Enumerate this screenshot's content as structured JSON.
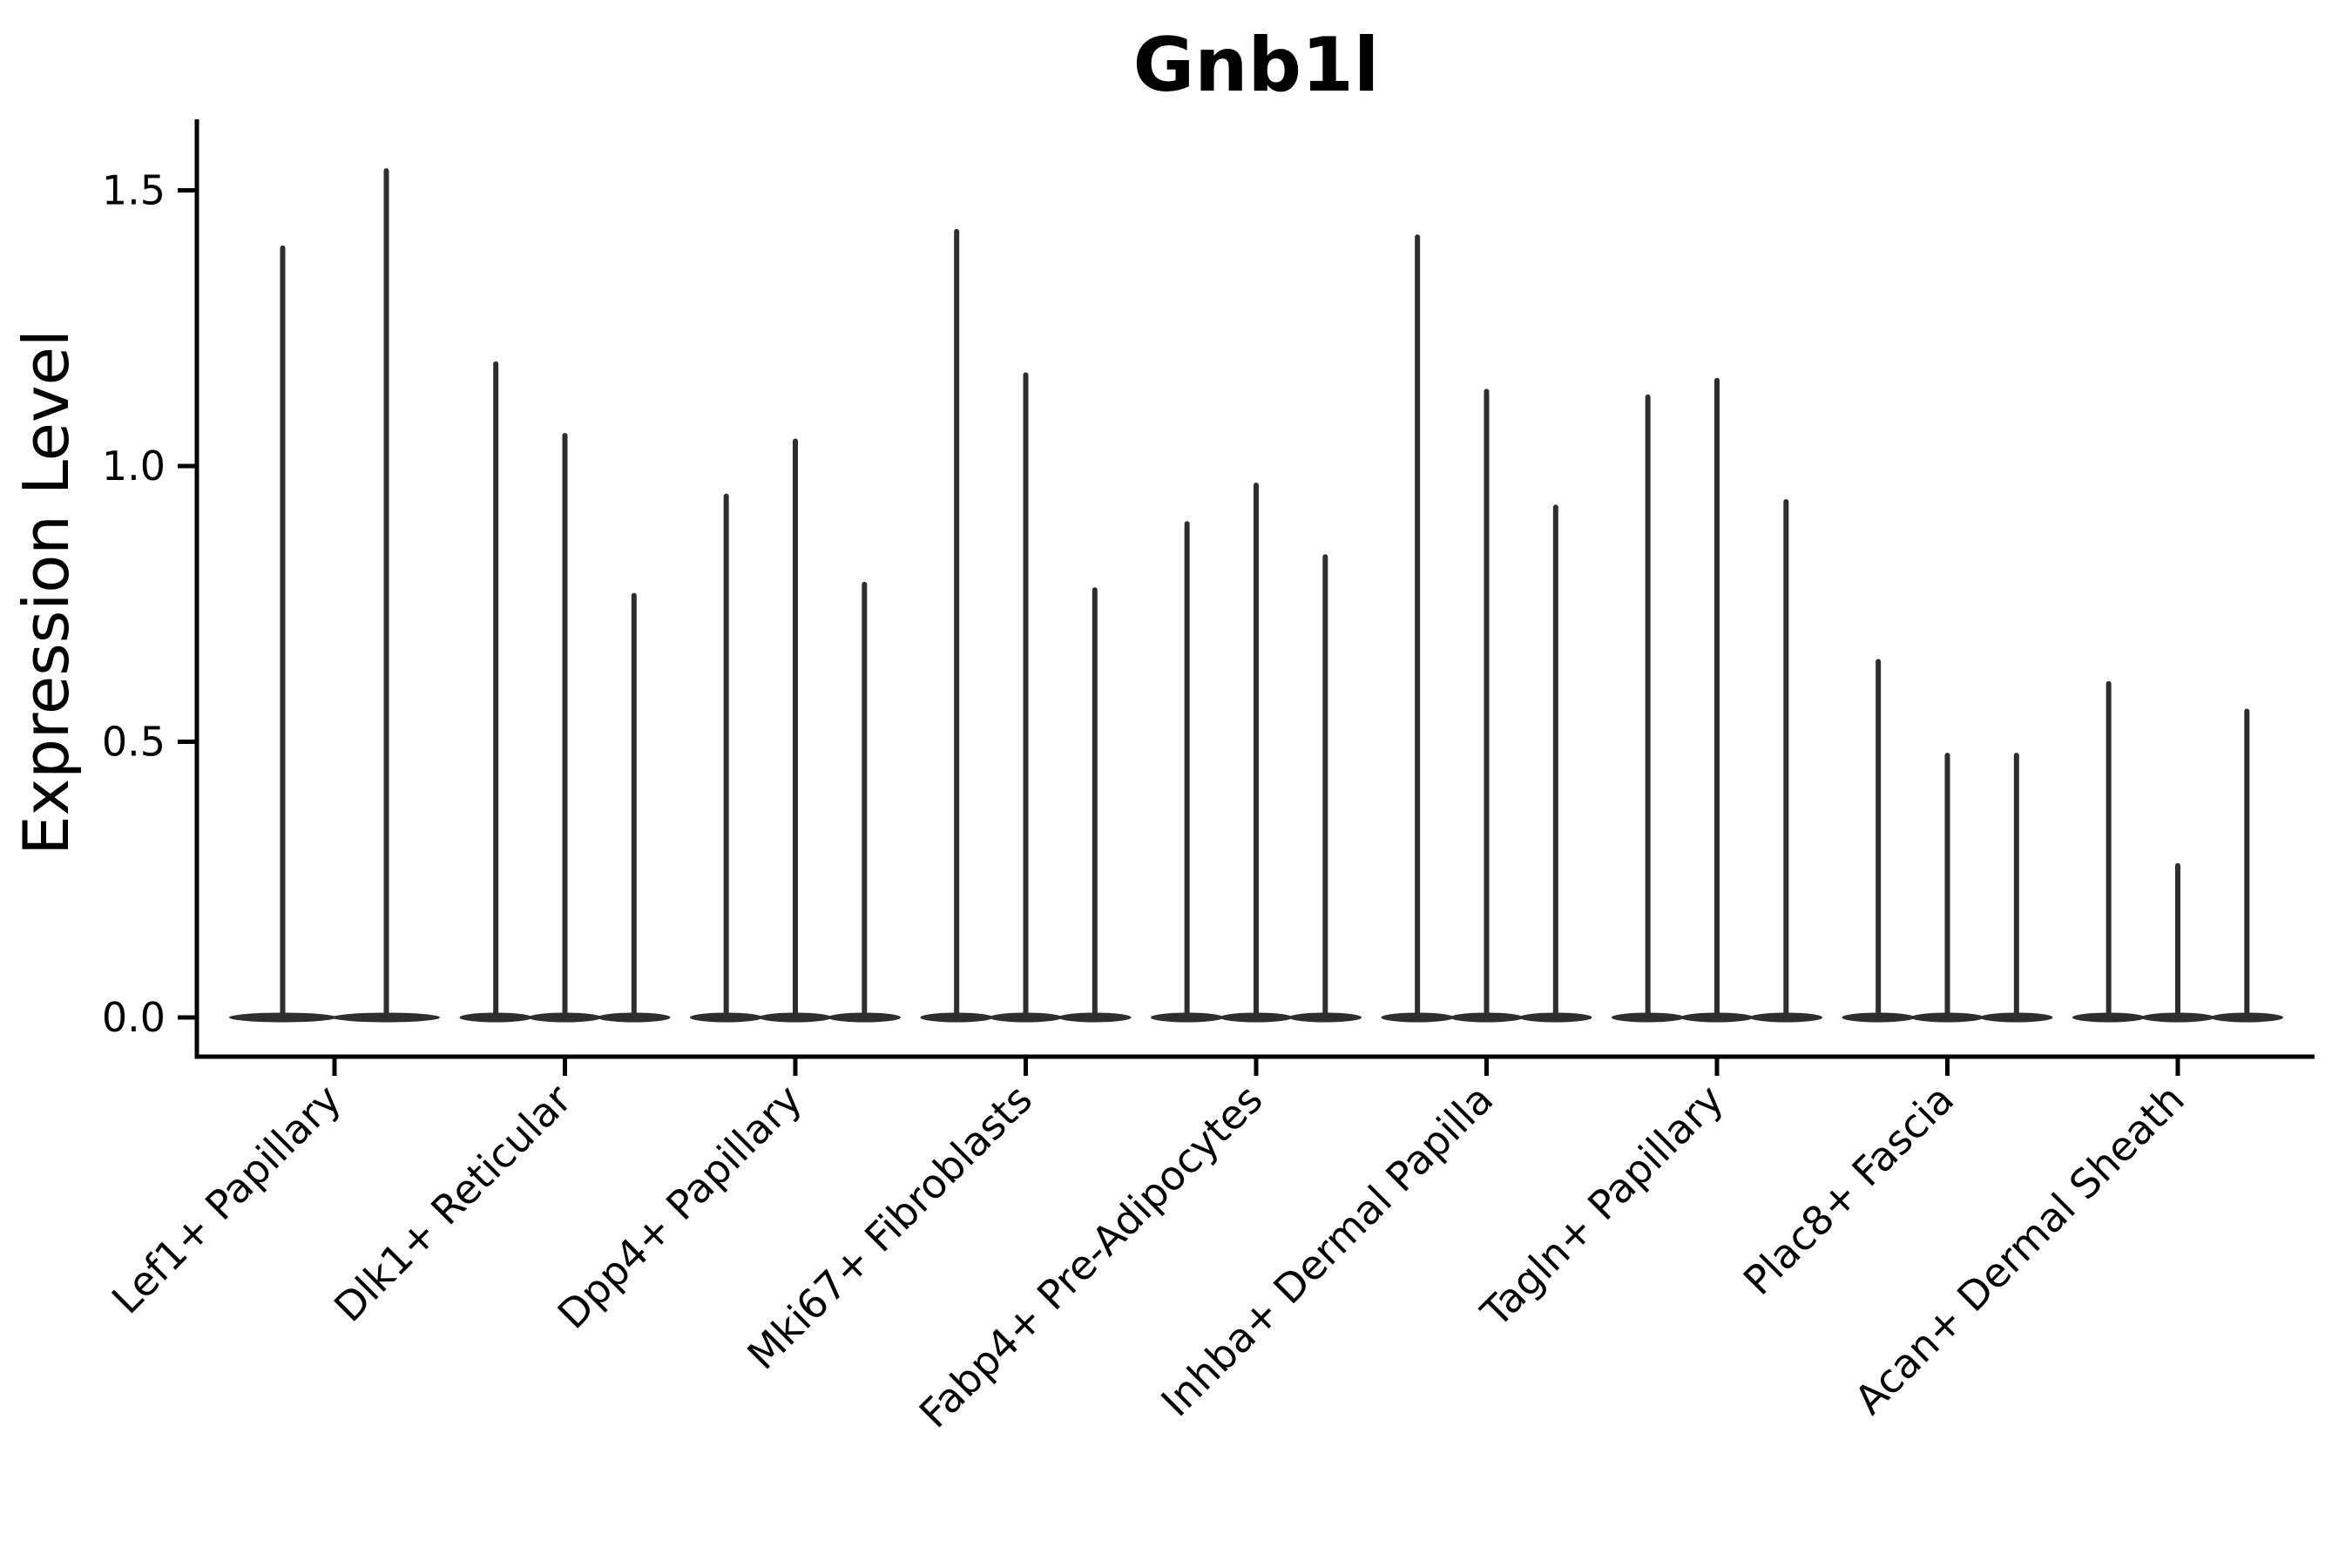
{
  "chart_data": {
    "type": "violin",
    "title": "Gnb1l",
    "xlabel": "",
    "ylabel": "Expression Level",
    "ylim": [
      0,
      1.62
    ],
    "yticks": [
      0.0,
      0.5,
      1.0,
      1.5
    ],
    "ytick_labels": [
      "0.0",
      "0.5",
      "1.0",
      "1.5"
    ],
    "grid": false,
    "legend": false,
    "orientation": "vertical",
    "categories": [
      "Lef1+ Papillary",
      "Dlk1+ Reticular",
      "Dpp4+ Papillary",
      "Mki67+ Fibroblasts",
      "Fabp4+ Pre-Adipocytes",
      "Inhba+ Dermal Papilla",
      "Tagln+ Papillary",
      "Plac8+ Fascia",
      "Acan+ Dermal Sheath"
    ],
    "groups": [
      {
        "category": "Lef1+ Papillary",
        "violin_peaks": [
          1.4,
          1.54
        ]
      },
      {
        "category": "Dlk1+ Reticular",
        "violin_peaks": [
          1.19,
          1.06,
          0.77
        ]
      },
      {
        "category": "Dpp4+ Papillary",
        "violin_peaks": [
          0.95,
          1.05,
          0.79
        ]
      },
      {
        "category": "Mki67+ Fibroblasts",
        "violin_peaks": [
          1.43,
          1.17,
          0.78
        ]
      },
      {
        "category": "Fabp4+ Pre-Adipocytes",
        "violin_peaks": [
          0.9,
          0.97,
          0.84
        ]
      },
      {
        "category": "Inhba+ Dermal Papilla",
        "violin_peaks": [
          1.42,
          1.14,
          0.93
        ]
      },
      {
        "category": "Tagln+ Papillary",
        "violin_peaks": [
          1.13,
          1.16,
          0.94
        ]
      },
      {
        "category": "Plac8+ Fascia",
        "violin_peaks": [
          0.65,
          0.48,
          0.48
        ]
      },
      {
        "category": "Acan+ Dermal Sheath",
        "violin_peaks": [
          0.61,
          0.28,
          0.56
        ]
      }
    ],
    "baseline_value": 0.0,
    "description": "Each violin is flat at 0 with a thin spike up to its maximum expression value",
    "colors": {
      "violin_fill": "#2e2e2e",
      "axis": "#000000",
      "text": "#000000",
      "background": "#ffffff"
    }
  }
}
